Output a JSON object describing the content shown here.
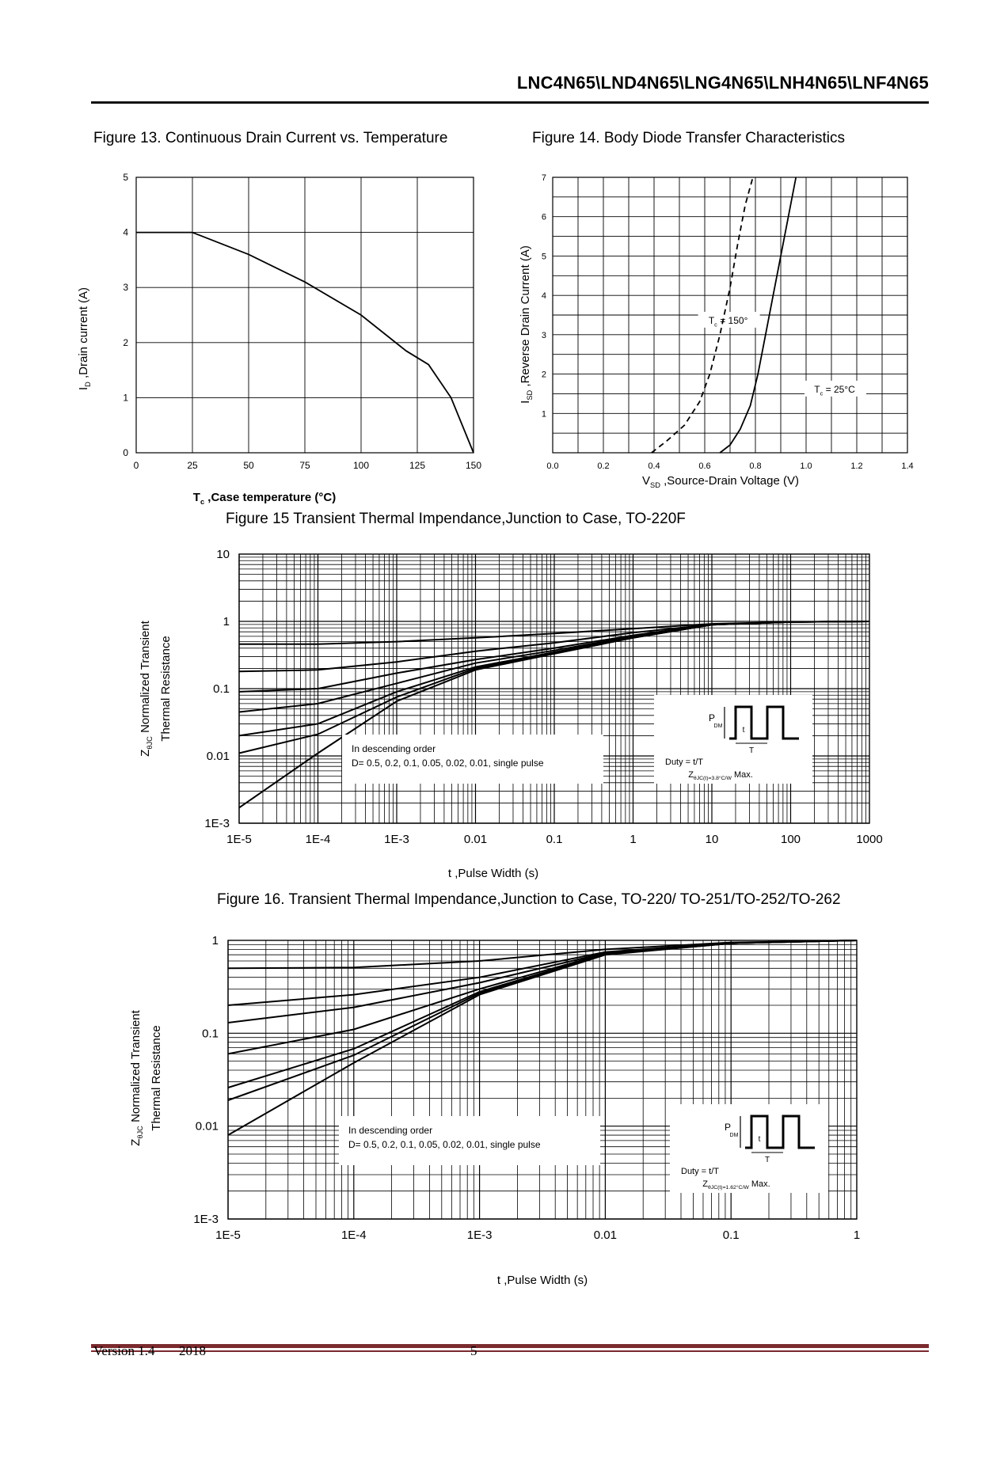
{
  "header": {
    "title": "LNC4N65\\LND4N65\\LNG4N65\\LNH4N65\\LNF4N65"
  },
  "footer": {
    "version": "Version 1.4",
    "year": "2018",
    "page_number": "5"
  },
  "chart_data": [
    {
      "id": "fig13",
      "type": "line",
      "title": "Figure 13. Continuous Drain Current vs. Temperature",
      "xlabel": "Tc ,Case temperature (°C)",
      "ylabel": "ID ,Drain current (A)",
      "xlim": [
        0,
        150
      ],
      "ylim": [
        0,
        5
      ],
      "xticks": [
        0,
        25,
        50,
        75,
        100,
        125,
        150
      ],
      "yticks": [
        0,
        1,
        2,
        3,
        4,
        5
      ],
      "grid": true,
      "series": [
        {
          "name": "ID",
          "x": [
            0,
            25,
            50,
            75,
            100,
            120,
            130,
            140,
            150
          ],
          "y": [
            4.0,
            4.0,
            3.6,
            3.1,
            2.5,
            1.85,
            1.6,
            1.0,
            0.0
          ]
        }
      ]
    },
    {
      "id": "fig14",
      "type": "line",
      "title": "Figure 14. Body Diode Transfer Characteristics",
      "xlabel": "VSD ,Source-Drain Voltage (V)",
      "ylabel": "ISD ,Reverse Drain Current (A)",
      "xlim": [
        0,
        1.4
      ],
      "ylim": [
        0,
        7
      ],
      "xticks": [
        0.0,
        0.2,
        0.4,
        0.6,
        0.8,
        1.0,
        1.2,
        1.4
      ],
      "yticks": [
        1,
        2,
        3,
        4,
        5,
        6,
        7
      ],
      "grid": true,
      "annotations": [
        {
          "text": "Tc = 150°",
          "x": 0.58,
          "y": 3.3
        },
        {
          "text": "Tc = 25°C",
          "x": 1.0,
          "y": 1.55
        }
      ],
      "series": [
        {
          "name": "Tc = 150°",
          "style": "dashed",
          "x": [
            0.39,
            0.45,
            0.52,
            0.58,
            0.62,
            0.66,
            0.7,
            0.73,
            0.76,
            0.79
          ],
          "y": [
            0.0,
            0.3,
            0.7,
            1.3,
            2.0,
            3.0,
            4.2,
            5.3,
            6.3,
            7.0
          ]
        },
        {
          "name": "Tc = 25°C",
          "style": "solid",
          "x": [
            0.66,
            0.7,
            0.74,
            0.78,
            0.81,
            0.84,
            0.87,
            0.9,
            0.93,
            0.96
          ],
          "y": [
            0.0,
            0.2,
            0.6,
            1.2,
            2.0,
            3.0,
            4.0,
            5.0,
            6.0,
            7.0
          ]
        }
      ]
    },
    {
      "id": "fig15",
      "type": "line",
      "scale": "loglog",
      "title": "Figure 15 Transient Thermal Impendance,Junction to Case, TO-220F",
      "xlabel": "t ,Pulse Width (s)",
      "ylabel_line1": "ZθJC Normalized Transient",
      "ylabel_line2": "Thermal Resistance",
      "xlim": [
        1e-05,
        1000
      ],
      "ylim": [
        0.001,
        10
      ],
      "xtick_labels": [
        "1E-5",
        "1E-4",
        "1E-3",
        "0.01",
        "0.1",
        "1",
        "10",
        "100",
        "1000"
      ],
      "ytick_labels": [
        "1E-3",
        "0.01",
        "0.1",
        "1",
        "10"
      ],
      "legend_text": [
        "In descending order",
        "D= 0.5, 0.2, 0.1, 0.05, 0.02, 0.01, single pulse"
      ],
      "inset_text": [
        "P",
        "DM",
        "t",
        "T",
        "Duty = t/T",
        "ZθJC(t)=3.8°C/W Max."
      ],
      "series": [
        {
          "name": "D=0.5",
          "x": [
            1e-05,
            0.0001,
            0.001,
            0.01,
            0.1,
            1,
            10,
            100,
            1000
          ],
          "y": [
            0.46,
            0.46,
            0.5,
            0.57,
            0.66,
            0.78,
            0.92,
            0.98,
            1.0
          ]
        },
        {
          "name": "D=0.2",
          "x": [
            1e-05,
            0.0001,
            0.001,
            0.01,
            0.1,
            1,
            10,
            100,
            1000
          ],
          "y": [
            0.18,
            0.19,
            0.25,
            0.36,
            0.48,
            0.68,
            0.9,
            0.98,
            1.0
          ]
        },
        {
          "name": "D=0.1",
          "x": [
            1e-05,
            0.0001,
            0.001,
            0.01,
            0.1,
            1,
            10,
            100,
            1000
          ],
          "y": [
            0.09,
            0.1,
            0.17,
            0.27,
            0.4,
            0.62,
            0.9,
            0.98,
            1.0
          ]
        },
        {
          "name": "D=0.05",
          "x": [
            1e-05,
            0.0001,
            0.001,
            0.01,
            0.1,
            1,
            10,
            100,
            1000
          ],
          "y": [
            0.045,
            0.06,
            0.12,
            0.24,
            0.37,
            0.6,
            0.9,
            0.98,
            1.0
          ]
        },
        {
          "name": "D=0.02",
          "x": [
            1e-05,
            0.0001,
            0.001,
            0.01,
            0.1,
            1,
            10,
            100,
            1000
          ],
          "y": [
            0.02,
            0.03,
            0.09,
            0.21,
            0.35,
            0.58,
            0.89,
            0.98,
            1.0
          ]
        },
        {
          "name": "D=0.01",
          "x": [
            1e-05,
            0.0001,
            0.001,
            0.01,
            0.1,
            1,
            10,
            100,
            1000
          ],
          "y": [
            0.011,
            0.021,
            0.075,
            0.2,
            0.34,
            0.57,
            0.89,
            0.98,
            1.0
          ]
        },
        {
          "name": "single pulse",
          "x": [
            1e-05,
            0.0001,
            0.001,
            0.01,
            0.1,
            1,
            10,
            100,
            1000
          ],
          "y": [
            0.0017,
            0.011,
            0.065,
            0.19,
            0.33,
            0.57,
            0.89,
            0.98,
            1.0
          ]
        }
      ]
    },
    {
      "id": "fig16",
      "type": "line",
      "scale": "loglog",
      "title": "Figure 16. Transient Thermal Impendance,Junction to Case, TO-220/ TO-251/TO-252/TO-262",
      "xlabel": "t ,Pulse Width (s)",
      "ylabel_line1": "ZθJC Normalized Transient",
      "ylabel_line2": "Thermal Resistance",
      "xlim": [
        1e-05,
        1
      ],
      "ylim": [
        0.001,
        1
      ],
      "xtick_labels": [
        "1E-5",
        "1E-4",
        "1E-3",
        "0.01",
        "0.1",
        "1"
      ],
      "ytick_labels": [
        "1E-3",
        "0.01",
        "0.1",
        "1"
      ],
      "legend_text": [
        "In descending order",
        "D= 0.5, 0.2, 0.1, 0.05, 0.02, 0.01, single pulse"
      ],
      "inset_text": [
        "P",
        "DM",
        "t",
        "T",
        "Duty = t/T",
        "ZθJC(t)=1.62°C/W Max."
      ],
      "series": [
        {
          "name": "D=0.5",
          "x": [
            1e-05,
            0.0001,
            0.001,
            0.01,
            0.1,
            1
          ],
          "y": [
            0.5,
            0.51,
            0.6,
            0.8,
            0.95,
            1.0
          ]
        },
        {
          "name": "D=0.2",
          "x": [
            1e-05,
            0.0001,
            0.001,
            0.01,
            0.1,
            1
          ],
          "y": [
            0.2,
            0.26,
            0.4,
            0.75,
            0.94,
            1.0
          ]
        },
        {
          "name": "D=0.1",
          "x": [
            1e-05,
            0.0001,
            0.001,
            0.01,
            0.1,
            1
          ],
          "y": [
            0.13,
            0.19,
            0.35,
            0.73,
            0.94,
            1.0
          ]
        },
        {
          "name": "D=0.05",
          "x": [
            1e-05,
            0.0001,
            0.001,
            0.01,
            0.1,
            1
          ],
          "y": [
            0.06,
            0.11,
            0.3,
            0.72,
            0.93,
            1.0
          ]
        },
        {
          "name": "D=0.02",
          "x": [
            1e-05,
            0.0001,
            0.001,
            0.01,
            0.1,
            1
          ],
          "y": [
            0.026,
            0.068,
            0.28,
            0.71,
            0.93,
            1.0
          ]
        },
        {
          "name": "D=0.01",
          "x": [
            1e-05,
            0.0001,
            0.001,
            0.01,
            0.1,
            1
          ],
          "y": [
            0.019,
            0.058,
            0.27,
            0.71,
            0.93,
            1.0
          ]
        },
        {
          "name": "single pulse",
          "x": [
            1e-05,
            0.0001,
            0.001,
            0.01,
            0.1,
            1
          ],
          "y": [
            0.008,
            0.048,
            0.26,
            0.7,
            0.93,
            1.0
          ]
        }
      ]
    }
  ]
}
